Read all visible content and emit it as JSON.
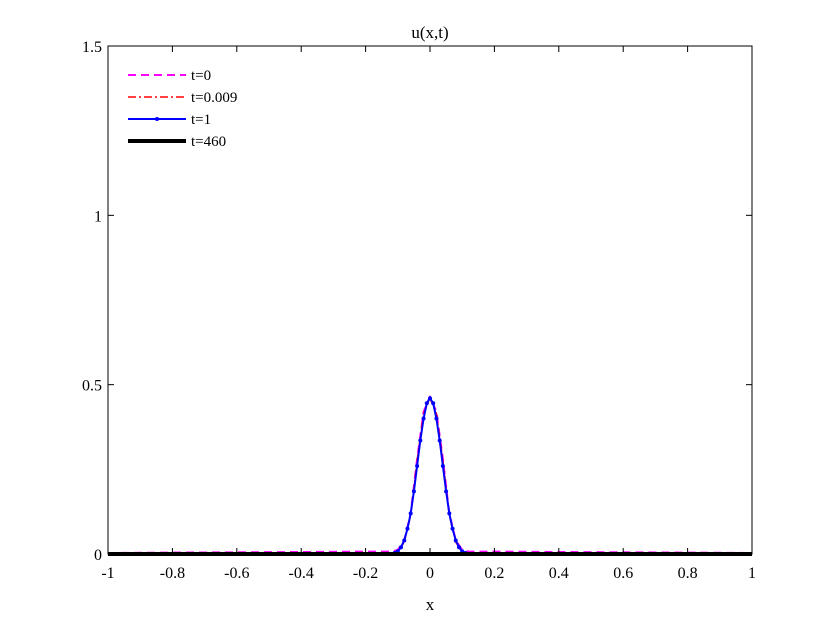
{
  "chart_data": {
    "type": "line",
    "title": "u(x,t)",
    "xlabel": "x",
    "ylabel": "",
    "xlim": [
      -1,
      1
    ],
    "ylim": [
      0,
      1.5
    ],
    "x_ticks": [
      -1,
      -0.8,
      -0.6,
      -0.4,
      -0.2,
      0,
      0.2,
      0.4,
      0.6,
      0.8,
      1
    ],
    "x_tick_labels": [
      "-1",
      "-0.8",
      "-0.6",
      "-0.4",
      "-0.2",
      "0",
      "0.2",
      "0.4",
      "0.6",
      "0.8",
      "1"
    ],
    "y_ticks": [
      0,
      0.5,
      1,
      1.5
    ],
    "y_tick_labels": [
      "0",
      "0.5",
      "1",
      "1.5"
    ],
    "grid": false,
    "legend_position": "top-left",
    "series": [
      {
        "name": "t=0",
        "color": "#ff00ff",
        "line_style": "dashed",
        "marker": "none",
        "x": [
          -1,
          -0.8,
          -0.6,
          -0.4,
          -0.2,
          -0.12,
          -0.1,
          -0.08,
          -0.06,
          -0.04,
          -0.02,
          0,
          0.02,
          0.04,
          0.06,
          0.08,
          0.1,
          0.12,
          0.2,
          0.4,
          0.6,
          0.8,
          1
        ],
        "y": [
          0.003,
          0.004,
          0.005,
          0.006,
          0.007,
          0.007,
          0.012,
          0.04,
          0.12,
          0.28,
          0.42,
          0.465,
          0.42,
          0.28,
          0.12,
          0.04,
          0.012,
          0.007,
          0.007,
          0.006,
          0.005,
          0.004,
          0.003
        ]
      },
      {
        "name": "t=0.009",
        "color": "#ff0000",
        "line_style": "dashdot",
        "marker": "none",
        "x": [
          -1,
          -0.8,
          -0.6,
          -0.4,
          -0.2,
          -0.12,
          -0.1,
          -0.08,
          -0.06,
          -0.04,
          -0.02,
          0,
          0.02,
          0.04,
          0.06,
          0.08,
          0.1,
          0.12,
          0.2,
          0.4,
          0.6,
          0.8,
          1
        ],
        "y": [
          0,
          0,
          0,
          0,
          0,
          0,
          0.005,
          0.035,
          0.115,
          0.275,
          0.415,
          0.46,
          0.415,
          0.275,
          0.115,
          0.035,
          0.005,
          0,
          0,
          0,
          0,
          0,
          0
        ]
      },
      {
        "name": "t=1",
        "color": "#0000ff",
        "line_style": "solid",
        "marker": "dot",
        "x": [
          -0.12,
          -0.11,
          -0.1,
          -0.09,
          -0.08,
          -0.07,
          -0.06,
          -0.05,
          -0.04,
          -0.03,
          -0.02,
          -0.01,
          0,
          0.01,
          0.02,
          0.03,
          0.04,
          0.05,
          0.06,
          0.07,
          0.08,
          0.09,
          0.1,
          0.11,
          0.12
        ],
        "y": [
          0,
          0.003,
          0.008,
          0.02,
          0.04,
          0.075,
          0.12,
          0.185,
          0.26,
          0.335,
          0.4,
          0.445,
          0.46,
          0.445,
          0.4,
          0.335,
          0.26,
          0.185,
          0.12,
          0.075,
          0.04,
          0.02,
          0.008,
          0.003,
          0
        ]
      },
      {
        "name": "t=460",
        "color": "#000000",
        "line_style": "solid",
        "marker": "none",
        "x": [
          -1,
          1
        ],
        "y": [
          0,
          0
        ]
      }
    ]
  }
}
